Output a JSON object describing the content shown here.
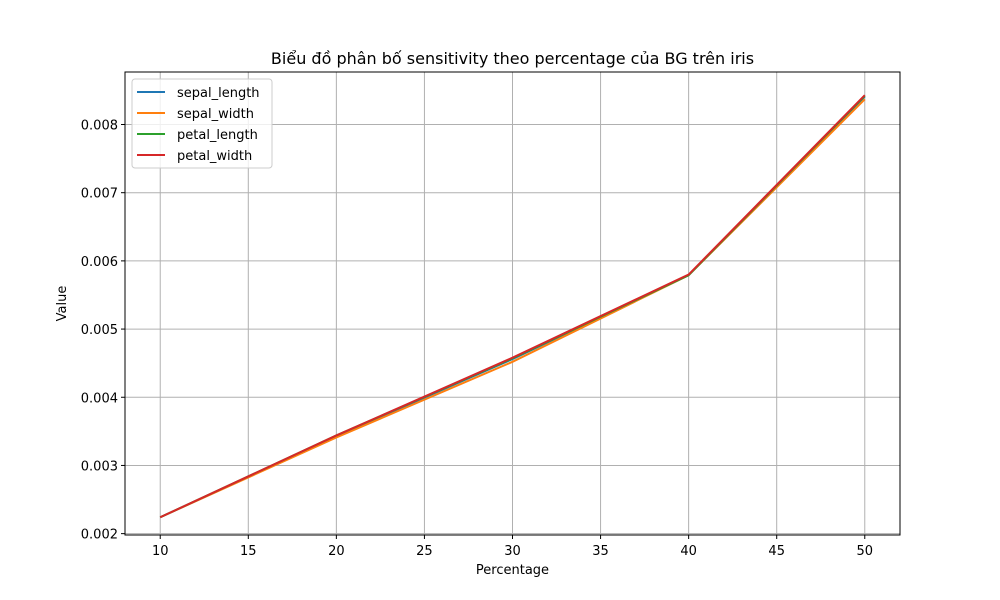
{
  "chart_data": {
    "type": "line",
    "title": "Biểu đồ phân bố sensitivity theo percentage của BG trên iris",
    "xlabel": "Percentage",
    "ylabel": "Value",
    "x": [
      10,
      20,
      30,
      40,
      50
    ],
    "xticks": [
      "10",
      "15",
      "20",
      "25",
      "30",
      "35",
      "40",
      "45",
      "50"
    ],
    "yticks": [
      "0.002",
      "0.003",
      "0.004",
      "0.005",
      "0.006",
      "0.007",
      "0.008"
    ],
    "xlim": [
      8,
      52
    ],
    "ylim": [
      0.00198,
      0.00877
    ],
    "grid": true,
    "legend_position": "top-left",
    "series": [
      {
        "name": "sepal_length",
        "color": "#1f77b4",
        "values": [
          0.00224,
          0.00343,
          0.00456,
          0.00579,
          0.00841
        ]
      },
      {
        "name": "sepal_width",
        "color": "#ff7f0e",
        "values": [
          0.00224,
          0.00341,
          0.00452,
          0.00579,
          0.00837
        ]
      },
      {
        "name": "petal_length",
        "color": "#2ca02c",
        "values": [
          0.00224,
          0.00344,
          0.00457,
          0.00579,
          0.00842
        ]
      },
      {
        "name": "petal_width",
        "color": "#d62728",
        "values": [
          0.00224,
          0.00344,
          0.00458,
          0.0058,
          0.00843
        ]
      }
    ]
  }
}
